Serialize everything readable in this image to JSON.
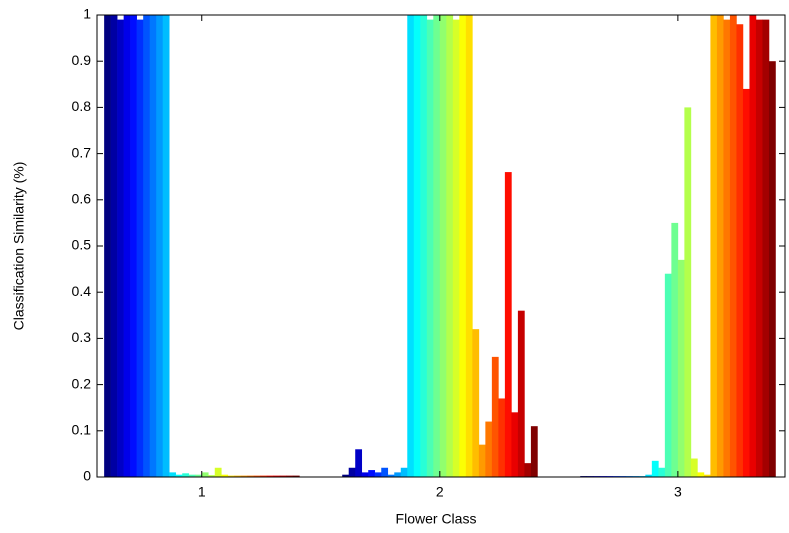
{
  "chart_data": {
    "type": "grouped_bar",
    "xlabel": "Flower Class",
    "ylabel": "Classification Similarity (%)",
    "x": [
      1,
      2,
      3
    ],
    "xlim": [
      0.56,
      3.45
    ],
    "xticks": [
      1,
      2,
      3
    ],
    "ylim": [
      0,
      1
    ],
    "yticks": [
      0,
      0.1,
      0.2,
      0.3,
      0.4,
      0.5,
      0.6,
      0.7,
      0.8,
      0.9,
      1
    ],
    "colormap": "jet",
    "group_width": 0.82,
    "grid": false,
    "series": [
      {
        "values": [
          1,
          0.005,
          0.002
        ]
      },
      {
        "values": [
          1,
          0.02,
          0.002
        ]
      },
      {
        "values": [
          0.99,
          0.06,
          0.002
        ]
      },
      {
        "values": [
          1,
          0.01,
          0.002
        ]
      },
      {
        "values": [
          1,
          0.015,
          0.002
        ]
      },
      {
        "values": [
          0.99,
          0.01,
          0.002
        ]
      },
      {
        "values": [
          1,
          0.02,
          0.002
        ]
      },
      {
        "values": [
          1,
          0.005,
          0.002
        ]
      },
      {
        "values": [
          1,
          0.01,
          0.002
        ]
      },
      {
        "values": [
          1,
          0.02,
          0.002
        ]
      },
      {
        "values": [
          0.01,
          1,
          0.005
        ]
      },
      {
        "values": [
          0.005,
          1,
          0.035
        ]
      },
      {
        "values": [
          0.008,
          1,
          0.02
        ]
      },
      {
        "values": [
          0.005,
          0.99,
          0.44
        ]
      },
      {
        "values": [
          0.005,
          1,
          0.55
        ]
      },
      {
        "values": [
          0.01,
          1,
          0.47
        ]
      },
      {
        "values": [
          0.004,
          1,
          0.8
        ]
      },
      {
        "values": [
          0.02,
          0.99,
          0.04
        ]
      },
      {
        "values": [
          0.005,
          1,
          0.01
        ]
      },
      {
        "values": [
          0.003,
          1,
          0.005
        ]
      },
      {
        "values": [
          0.003,
          0.32,
          1
        ]
      },
      {
        "values": [
          0.003,
          0.07,
          1
        ]
      },
      {
        "values": [
          0.003,
          0.12,
          0.99
        ]
      },
      {
        "values": [
          0.003,
          0.26,
          1
        ]
      },
      {
        "values": [
          0.003,
          0.17,
          0.98
        ]
      },
      {
        "values": [
          0.003,
          0.66,
          0.84
        ]
      },
      {
        "values": [
          0.003,
          0.14,
          1
        ]
      },
      {
        "values": [
          0.003,
          0.36,
          0.99
        ]
      },
      {
        "values": [
          0.003,
          0.03,
          0.99
        ]
      },
      {
        "values": [
          0.003,
          0.11,
          0.9
        ]
      }
    ]
  }
}
